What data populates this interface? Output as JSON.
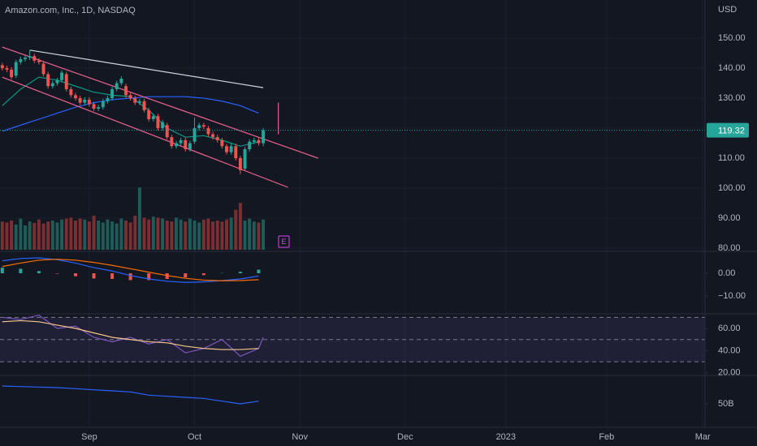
{
  "chart_data": [
    {
      "type": "candlestick",
      "title": "Amazon.com, Inc., 1D, NASDAQ",
      "currency": "USD",
      "xlim": [
        -0.5,
        153.5
      ],
      "xticks": [
        {
          "value": 19,
          "label": "Sep"
        },
        {
          "value": 42,
          "label": "Oct"
        },
        {
          "value": 65,
          "label": "Nov"
        },
        {
          "value": 88,
          "label": "Dec"
        },
        {
          "value": 110,
          "label": "2023"
        },
        {
          "value": 132,
          "label": "Feb"
        },
        {
          "value": 153,
          "label": "Mar"
        }
      ],
      "ylim": [
        79.5,
        162.7
      ],
      "yticks": [
        {
          "value": 150,
          "label": "150.00"
        },
        {
          "value": 140,
          "label": "140.00"
        },
        {
          "value": 130,
          "label": "130.00"
        },
        {
          "value": 120,
          "label": "120.00"
        },
        {
          "value": 110,
          "label": "110.00"
        },
        {
          "value": 100,
          "label": "100.00"
        },
        {
          "value": 90,
          "label": "90.00"
        },
        {
          "value": 80,
          "label": "80.00"
        }
      ],
      "up_color": "#26a69a",
      "down_color": "#ef5350",
      "open": [
        141,
        140,
        139.5,
        137.5,
        142,
        143,
        143.5,
        144,
        142.5,
        141.5,
        138,
        134,
        135,
        136,
        138,
        133,
        131,
        130,
        128.5,
        129.5,
        128,
        126.5,
        127,
        129,
        130,
        133,
        135,
        134,
        131,
        130,
        128.5,
        129,
        126,
        123,
        124,
        120,
        121,
        117,
        114,
        115,
        116,
        113,
        115.5,
        120,
        121,
        120,
        118,
        117,
        116,
        114,
        112,
        114,
        110,
        106.5,
        113,
        115.5,
        116,
        115
      ],
      "high": [
        141.8,
        140.8,
        140.3,
        142.8,
        143.8,
        144.3,
        146,
        144.8,
        143.3,
        142.3,
        138.8,
        135.8,
        136.8,
        139.3,
        138.8,
        133.8,
        131.8,
        130.8,
        130.3,
        130.3,
        128.8,
        127.8,
        129.8,
        130.8,
        133.8,
        135.8,
        137.3,
        134.8,
        131.8,
        130.8,
        129.8,
        129.8,
        126.8,
        124.8,
        124.8,
        122.8,
        121.8,
        117.8,
        115.8,
        116.8,
        116.8,
        115.8,
        123.5,
        121.8,
        121.8,
        120.8,
        118.8,
        117.8,
        116.8,
        114.8,
        114.8,
        114.8,
        110.8,
        113.8,
        116.3,
        116.8,
        116.8,
        120
      ],
      "low": [
        139.2,
        138.7,
        136.2,
        136.7,
        141.2,
        142.2,
        142.7,
        141.7,
        141.2,
        137.2,
        133.2,
        133.2,
        134.2,
        135.2,
        132.2,
        130.2,
        129.2,
        127.7,
        127.7,
        127.2,
        125.7,
        125.7,
        126.2,
        128.2,
        129.2,
        132.2,
        134.2,
        130.2,
        129.2,
        127.7,
        127.7,
        125.2,
        122.2,
        122.2,
        119.2,
        119.2,
        116.2,
        113.2,
        113.2,
        114.2,
        112.2,
        112.2,
        114.7,
        119.2,
        119.7,
        117.2,
        116.2,
        115.2,
        113.2,
        111.2,
        111.2,
        109.2,
        104.7,
        105.7,
        112.2,
        114.7,
        114.2,
        114
      ],
      "close": [
        140,
        139.5,
        137,
        142,
        143,
        143.5,
        144,
        142.5,
        142,
        138,
        134,
        135,
        136,
        138.5,
        133,
        131,
        130,
        128.5,
        129.5,
        128,
        126.5,
        127,
        129,
        130,
        133,
        135,
        136.5,
        131,
        130,
        128.5,
        129,
        126,
        123,
        124,
        120,
        122,
        117,
        114,
        115,
        116,
        113,
        115,
        120,
        121,
        120.5,
        118,
        117,
        116,
        114,
        112,
        114,
        110,
        106,
        113,
        115.5,
        116,
        115,
        119.32
      ],
      "volume_lim": [
        0,
        513
      ],
      "volume": [
        58,
        56,
        60,
        52,
        64,
        50,
        58,
        55,
        62,
        54,
        58,
        60,
        56,
        62,
        64,
        66,
        60,
        64,
        62,
        58,
        70,
        60,
        56,
        62,
        58,
        54,
        64,
        60,
        56,
        70,
        128,
        66,
        62,
        68,
        66,
        64,
        60,
        58,
        66,
        62,
        58,
        64,
        60,
        56,
        62,
        64,
        58,
        60,
        58,
        62,
        66,
        82,
        96,
        60,
        64,
        58,
        56,
        62
      ],
      "last_price": 119.32,
      "last_price_color": "#26a69a",
      "earnings_marker": "E",
      "series": [
        {
          "color": "#089981",
          "x": [
            0,
            4,
            8,
            12,
            16,
            20,
            24,
            28,
            32,
            36,
            40,
            44,
            48,
            52,
            56
          ],
          "values": [
            127.5,
            133,
            137,
            136,
            134,
            132,
            131,
            130.5,
            126,
            120,
            117,
            117.5,
            116,
            114,
            115.5
          ]
        },
        {
          "color": "#2962ff",
          "x": [
            0,
            4,
            8,
            12,
            16,
            20,
            24,
            28,
            32,
            36,
            40,
            44,
            48,
            52,
            56
          ],
          "values": [
            119,
            121,
            123,
            125,
            127,
            128.5,
            129.5,
            130,
            130.5,
            130.5,
            130.5,
            130,
            129,
            127.5,
            125
          ]
        },
        {
          "color": "#d1d4dc",
          "x": [
            6,
            57
          ],
          "values": [
            146,
            133.5
          ]
        },
        {
          "color": "#f06292",
          "x": [
            0,
            69
          ],
          "values": [
            147,
            110
          ]
        },
        {
          "color": "#f06292",
          "x": [
            0,
            62.4
          ],
          "values": [
            137,
            100.3
          ]
        },
        {
          "color": "#f06292",
          "x": [
            60.3,
            60.3
          ],
          "values": [
            128.5,
            118
          ]
        }
      ]
    },
    {
      "type": "line",
      "ylim": [
        -17.5,
        9.3
      ],
      "yticks": [
        {
          "value": 0,
          "label": "0.00"
        },
        {
          "value": -10,
          "label": "−10.00"
        }
      ],
      "series": [
        {
          "kind": "bar",
          "color": "#26a69a",
          "neg_color": "#ef5350",
          "x": [
            0,
            4,
            8,
            12,
            16,
            20,
            24,
            28,
            32,
            36,
            40,
            44,
            48,
            52,
            56
          ],
          "values": [
            2.5,
            2,
            1,
            -0.2,
            -1.3,
            -2.3,
            -2.5,
            -3,
            -3,
            -2.5,
            -1.8,
            -0.8,
            0.1,
            0.7,
            1.6
          ]
        },
        {
          "color": "#2962ff",
          "x": [
            0,
            4,
            8,
            12,
            16,
            20,
            24,
            28,
            32,
            36,
            40,
            44,
            48,
            52,
            56
          ],
          "values": [
            5.5,
            6.5,
            6.8,
            6,
            4.5,
            2.5,
            1,
            -1,
            -2.5,
            -3.5,
            -4,
            -3.8,
            -3.2,
            -2.5,
            -1.2
          ]
        },
        {
          "color": "#ff6d00",
          "x": [
            0,
            4,
            8,
            12,
            16,
            20,
            24,
            28,
            32,
            36,
            40,
            44,
            48,
            52,
            56
          ],
          "values": [
            3,
            4.5,
            5.8,
            6.2,
            5.8,
            4.8,
            3.5,
            2,
            0.5,
            -1,
            -2.2,
            -3,
            -3.3,
            -3.2,
            -2.8
          ]
        }
      ]
    },
    {
      "type": "line",
      "ylim": [
        18.4,
        71.7
      ],
      "yticks": [
        {
          "value": 60,
          "label": "60.00"
        },
        {
          "value": 40,
          "label": "40.00"
        },
        {
          "value": 20,
          "label": "20.00"
        }
      ],
      "levels": [
        70,
        50,
        30
      ],
      "band_color": "#7e57c2",
      "series": [
        {
          "color": "#7e57c2",
          "x": [
            0,
            4,
            8,
            12,
            16,
            20,
            24,
            28,
            32,
            36,
            40,
            44,
            48,
            52,
            56,
            57
          ],
          "values": [
            70,
            68,
            72,
            60,
            62,
            52,
            48,
            52,
            46,
            50,
            38,
            42,
            50,
            35,
            42,
            52
          ]
        },
        {
          "color": "#f5c78a",
          "x": [
            0,
            4,
            8,
            12,
            16,
            20,
            24,
            28,
            32,
            36,
            40,
            44,
            48,
            52,
            56
          ],
          "values": [
            66,
            67,
            66,
            63,
            60,
            56,
            52,
            50,
            48,
            47,
            44,
            42,
            41,
            41,
            42
          ]
        }
      ]
    },
    {
      "type": "line",
      "ylim": [
        29,
        74.75
      ],
      "yticks": [
        {
          "value": 50,
          "label": "50B"
        }
      ],
      "series": [
        {
          "color": "#2962ff",
          "x": [
            0,
            4,
            8,
            12,
            16,
            20,
            24,
            28,
            32,
            36,
            40,
            44,
            48,
            52,
            56
          ],
          "values": [
            66.5,
            66,
            65.5,
            65,
            64,
            63,
            62,
            61,
            58,
            57,
            56,
            55,
            52.5,
            50,
            52.5
          ]
        }
      ]
    }
  ]
}
